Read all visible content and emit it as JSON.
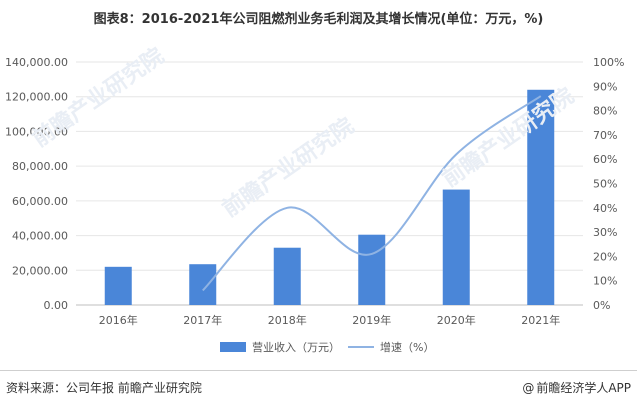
{
  "title": "图表8：2016-2021年公司阻燃剂业务毛利润及其增长情况(单位：万元，%)",
  "footer": {
    "source": "资料来源：公司年报 前瞻产业研究院",
    "credit_icon": "at-icon",
    "credit": "前瞻经济学人APP"
  },
  "watermark": "前瞻产业研究院",
  "colors": {
    "bar": "#4a86d8",
    "line": "#8fb3e3",
    "grid": "#e6e6e6",
    "axis": "#bfbfbf",
    "text": "#595959"
  },
  "chart_data": {
    "type": "bar+line",
    "categories": [
      "2016年",
      "2017年",
      "2018年",
      "2019年",
      "2020年",
      "2021年"
    ],
    "series": [
      {
        "name": "营业收入（万元）",
        "type": "bar",
        "axis": "left",
        "values": [
          22000,
          23500,
          33000,
          40500,
          66500,
          124000
        ]
      },
      {
        "name": "增速（%）",
        "type": "line",
        "axis": "right",
        "values": [
          null,
          6,
          40,
          21,
          62,
          86
        ]
      }
    ],
    "y_left": {
      "min": 0,
      "max": 140000,
      "step": 20000,
      "ticks": [
        "0.00",
        "20,000.00",
        "40,000.00",
        "60,000.00",
        "80,000.00",
        "100,000.00",
        "120,000.00",
        "140,000.00"
      ]
    },
    "y_right": {
      "min": 0,
      "max": 100,
      "step": 10,
      "ticks": [
        "0%",
        "10%",
        "20%",
        "30%",
        "40%",
        "50%",
        "60%",
        "70%",
        "80%",
        "90%",
        "100%"
      ]
    },
    "grid": true,
    "legend": "bottom"
  }
}
